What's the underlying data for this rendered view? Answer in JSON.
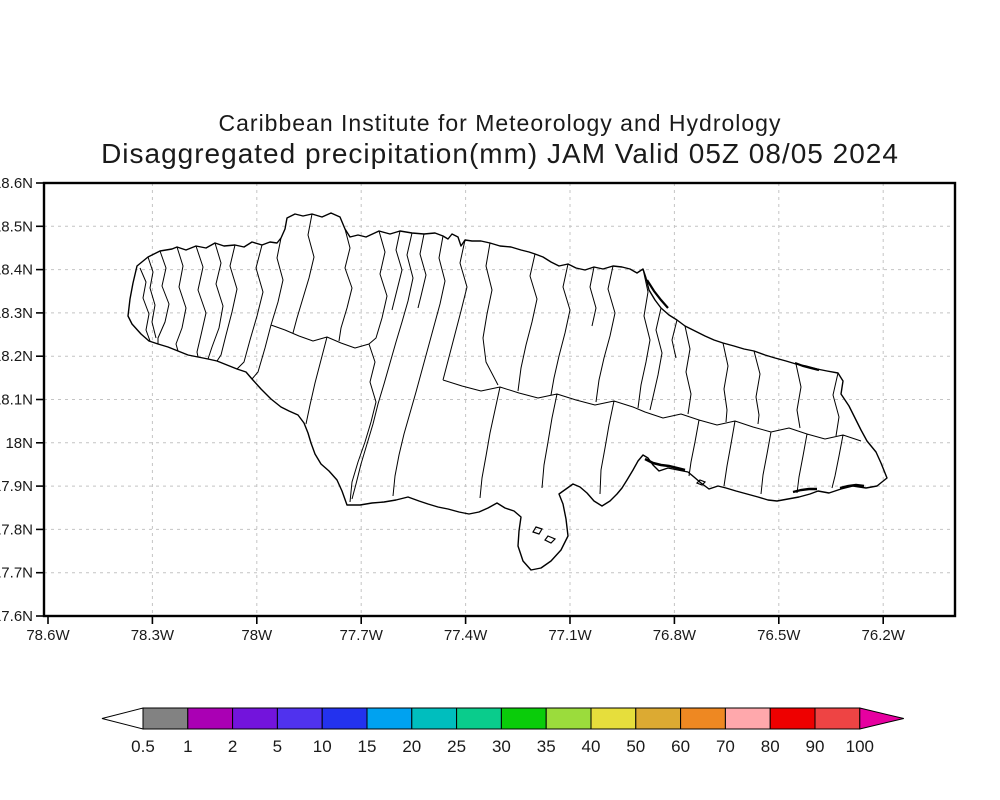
{
  "title": {
    "line1": "Caribbean Institute for Meteorology and Hydrology",
    "line2": "Disaggregated precipitation(mm) JAM Valid 05Z 08/05 2024"
  },
  "axes": {
    "lat_labels": [
      "18.6N",
      "18.5N",
      "18.4N",
      "18.3N",
      "18.2N",
      "18.1N",
      "18N",
      "17.9N",
      "17.8N",
      "17.7N",
      "17.6N"
    ],
    "lon_labels": [
      "78.6W",
      "78.3W",
      "78W",
      "77.7W",
      "77.4W",
      "77.1W",
      "76.8W",
      "76.5W",
      "76.2W"
    ]
  },
  "colorbar": {
    "labels": [
      "0.5",
      "1",
      "2",
      "5",
      "10",
      "15",
      "20",
      "25",
      "30",
      "35",
      "40",
      "50",
      "60",
      "70",
      "80",
      "90",
      "100"
    ],
    "segment_colors": [
      "#828282",
      "#AA00B4",
      "#7314DC",
      "#5032EE",
      "#2332EE",
      "#00A2F0",
      "#00BEBE",
      "#0ACC8C",
      "#0ACC0A",
      "#9BDC3C",
      "#E6DE3C",
      "#DCAA32",
      "#EE8822",
      "#FFA8AC",
      "#EE0000",
      "#EE4444"
    ],
    "left_arrow_color": "#FFFFFF",
    "right_arrow_color": "#E600A0",
    "outline_color": "#000000"
  },
  "map": {
    "grid_color": "#C4C4C4",
    "frame_color": "#000000",
    "coastline_color": "#000000"
  },
  "chart_data": {
    "type": "map",
    "title": "Caribbean Institute for Meteorology and Hydrology",
    "subtitle": "Disaggregated precipitation(mm) JAM Valid 05Z 08/05 2024",
    "region_shown": "Jamaica (JAM)",
    "lat_ticks": [
      18.6,
      18.5,
      18.4,
      18.3,
      18.2,
      18.1,
      18.0,
      17.9,
      17.8,
      17.7,
      17.6
    ],
    "lon_ticks_west": [
      78.6,
      78.3,
      78.0,
      77.7,
      77.4,
      77.1,
      76.8,
      76.5,
      76.2
    ],
    "grid": "dashed",
    "legend_position": "bottom",
    "colorbar_thresholds_mm": [
      0.5,
      1,
      2,
      5,
      10,
      15,
      20,
      25,
      30,
      35,
      40,
      50,
      60,
      70,
      80,
      90,
      100
    ],
    "colorbar_colors": [
      "#828282",
      "#AA00B4",
      "#7314DC",
      "#5032EE",
      "#2332EE",
      "#00A2F0",
      "#00BEBE",
      "#0ACC8C",
      "#0ACC0A",
      "#9BDC3C",
      "#E6DE3C",
      "#DCAA32",
      "#EE8822",
      "#FFA8AC",
      "#EE0000",
      "#EE4444"
    ],
    "shaded_precipitation_regions": []
  }
}
